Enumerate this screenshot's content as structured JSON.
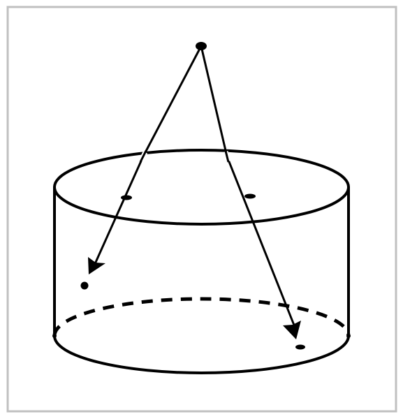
{
  "diagram": {
    "subject": "cylinder-with-two-rays-from-external-point",
    "colors": {
      "ink": "#000000",
      "frame": "#c0c0c0",
      "background": "#ffffff"
    },
    "elements": {
      "cylinder": {
        "bottom_back_rim_style": "dashed"
      },
      "rays": [
        {
          "name": "left-ray",
          "arrowhead": true,
          "crosses_top_face": true
        },
        {
          "name": "right-ray",
          "arrowhead": true,
          "crosses_top_face": true
        }
      ]
    }
  }
}
